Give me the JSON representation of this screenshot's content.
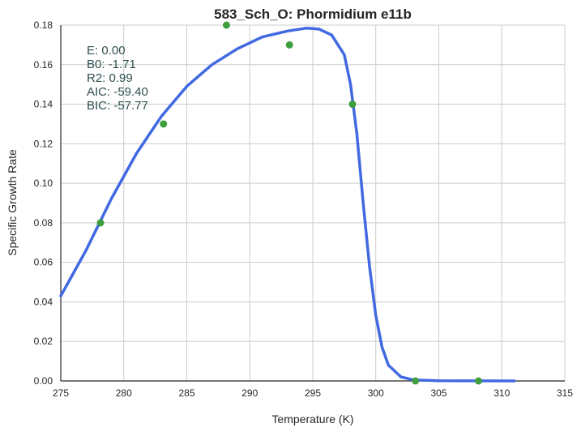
{
  "chart_data": {
    "type": "line",
    "title": "583_Sch_O: Phormidium e11b",
    "xlabel": "Temperature (K)",
    "ylabel": "Specific Growth Rate",
    "xlim": [
      275,
      315
    ],
    "ylim": [
      0,
      0.18
    ],
    "x_ticks": [
      "275",
      "280",
      "285",
      "290",
      "295",
      "300",
      "305",
      "310",
      "315"
    ],
    "y_ticks": [
      "0.00",
      "0.02",
      "0.04",
      "0.06",
      "0.08",
      "0.10",
      "0.12",
      "0.14",
      "0.16",
      "0.18"
    ],
    "grid": true,
    "points": [
      {
        "x": 278.15,
        "y": 0.08
      },
      {
        "x": 283.15,
        "y": 0.13
      },
      {
        "x": 288.15,
        "y": 0.18
      },
      {
        "x": 293.15,
        "y": 0.17
      },
      {
        "x": 298.15,
        "y": 0.14
      },
      {
        "x": 303.15,
        "y": 0.0
      },
      {
        "x": 308.15,
        "y": 0.0
      }
    ],
    "fit_curve": [
      {
        "x": 275.0,
        "y": 0.043
      },
      {
        "x": 277.0,
        "y": 0.066
      },
      {
        "x": 279.0,
        "y": 0.092
      },
      {
        "x": 281.0,
        "y": 0.115
      },
      {
        "x": 283.0,
        "y": 0.134
      },
      {
        "x": 285.0,
        "y": 0.149
      },
      {
        "x": 287.0,
        "y": 0.16
      },
      {
        "x": 289.0,
        "y": 0.168
      },
      {
        "x": 291.0,
        "y": 0.174
      },
      {
        "x": 293.0,
        "y": 0.177
      },
      {
        "x": 294.5,
        "y": 0.1785
      },
      {
        "x": 295.5,
        "y": 0.178
      },
      {
        "x": 296.5,
        "y": 0.175
      },
      {
        "x": 297.5,
        "y": 0.165
      },
      {
        "x": 298.0,
        "y": 0.15
      },
      {
        "x": 298.5,
        "y": 0.125
      },
      {
        "x": 299.0,
        "y": 0.09
      },
      {
        "x": 299.5,
        "y": 0.058
      },
      {
        "x": 300.0,
        "y": 0.033
      },
      {
        "x": 300.5,
        "y": 0.017
      },
      {
        "x": 301.0,
        "y": 0.008
      },
      {
        "x": 302.0,
        "y": 0.002
      },
      {
        "x": 303.0,
        "y": 0.0005
      },
      {
        "x": 305.0,
        "y": 0.0001
      },
      {
        "x": 311.0,
        "y": 0.0
      }
    ],
    "colors": {
      "curve": "#4169e1",
      "points": "#3f9f3f",
      "grid": "#cccccc",
      "axis": "#262626"
    },
    "annotations": [
      "E:  0.00",
      "B0:  -1.71",
      "R2:  0.99",
      "AIC: -59.40",
      "BIC: -57.77"
    ]
  }
}
